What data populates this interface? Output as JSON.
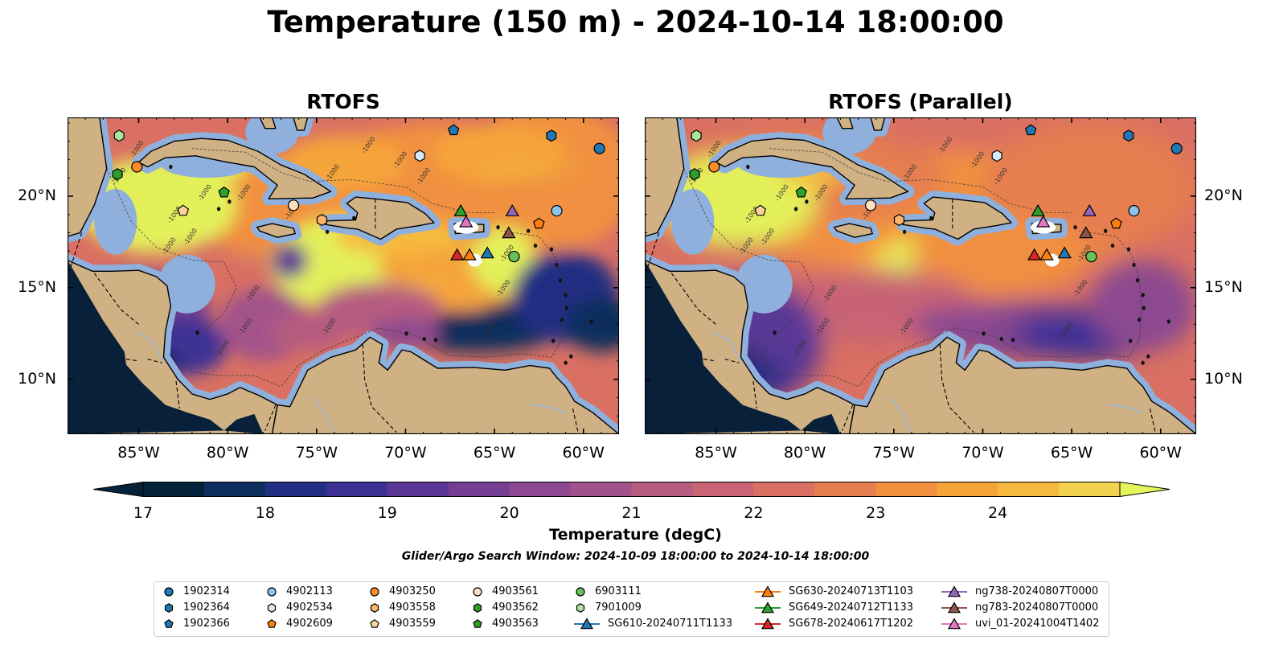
{
  "title": "Temperature (150 m) - 2024-10-14 18:00:00",
  "panels": [
    {
      "title": "RTOFS"
    },
    {
      "title": "RTOFS (Parallel)"
    }
  ],
  "map_axes": {
    "lon_labels": [
      "85°W",
      "80°W",
      "75°W",
      "70°W",
      "65°W",
      "60°W"
    ],
    "lon_values": [
      -85,
      -80,
      -75,
      -70,
      -65,
      -60
    ],
    "lat_labels": [
      "20°N",
      "15°N",
      "10°N"
    ],
    "lat_values": [
      20,
      15,
      10
    ],
    "lon_range": [
      -89,
      -58
    ],
    "lat_range": [
      7,
      24.3
    ]
  },
  "contour_label": "-1000",
  "colors": {
    "land": "#cfb184",
    "shelf": "#8fb0dc",
    "deep_cold": "#08203a",
    "warm": "#e3f05a"
  },
  "colorbar": {
    "label": "Temperature (degC)",
    "ticks": [
      "17",
      "18",
      "19",
      "20",
      "21",
      "22",
      "23",
      "24"
    ],
    "tick_values": [
      17,
      18,
      19,
      20,
      21,
      22,
      23,
      24
    ],
    "range": [
      16.7,
      24.5
    ],
    "colors": [
      "#04233b",
      "#0e2e5d",
      "#232f83",
      "#3d3095",
      "#5a3796",
      "#743f92",
      "#8c4890",
      "#a2528a",
      "#b65c80",
      "#c86474",
      "#d97063",
      "#e67e50",
      "#f1903f",
      "#f5a43a",
      "#f6b93f",
      "#f2d24f"
    ],
    "under_color": "#04233b",
    "over_color": "#e3f55a"
  },
  "search_window": "Glider/Argo Search Window: 2024-10-09 18:00:00 to 2024-10-14 18:00:00",
  "legend": {
    "items": [
      {
        "label": "1902314",
        "marker": "circle",
        "color": "#1f77b4"
      },
      {
        "label": "1902364",
        "marker": "hexagon",
        "color": "#1f77b4"
      },
      {
        "label": "1902366",
        "marker": "pentagon",
        "color": "#1f77b4"
      },
      {
        "label": "4902113",
        "marker": "circle",
        "color": "#8ac5ef"
      },
      {
        "label": "4902534",
        "marker": "hexagon",
        "color": "#d5e9fa"
      },
      {
        "label": "4902609",
        "marker": "pentagon",
        "color": "#ff7f0e"
      },
      {
        "label": "4903250",
        "marker": "circle",
        "color": "#ff8c2a"
      },
      {
        "label": "4903558",
        "marker": "hexagon",
        "color": "#ffb36b"
      },
      {
        "label": "4903559",
        "marker": "pentagon",
        "color": "#ffd3a0"
      },
      {
        "label": "4903561",
        "marker": "circle",
        "color": "#fde0c0"
      },
      {
        "label": "4903562",
        "marker": "hexagon",
        "color": "#2ca02c"
      },
      {
        "label": "4903563",
        "marker": "pentagon",
        "color": "#2ca02c"
      },
      {
        "label": "6903111",
        "marker": "circle",
        "color": "#66c35a"
      },
      {
        "label": "7901009",
        "marker": "hexagon",
        "color": "#a9e69b"
      },
      {
        "label": "SG610-20240711T1133",
        "marker": "triangle",
        "color": "#1f77b4"
      },
      {
        "label": "SG630-20240713T1103",
        "marker": "triangle",
        "color": "#ff7f0e"
      },
      {
        "label": "SG649-20240712T1133",
        "marker": "triangle",
        "color": "#2ca02c"
      },
      {
        "label": "SG678-20240617T1202",
        "marker": "triangle",
        "color": "#d62728"
      },
      {
        "label": "ng738-20240807T0000",
        "marker": "triangle",
        "color": "#9467bd"
      },
      {
        "label": "ng783-20240807T0000",
        "marker": "triangle",
        "color": "#8c564b"
      },
      {
        "label": "uvi_01-20241004T1402",
        "marker": "triangle",
        "color": "#e377c2"
      }
    ]
  },
  "observations": [
    {
      "id": "1902314",
      "lon": -59.1,
      "lat": 22.6
    },
    {
      "id": "1902364",
      "lon": -61.8,
      "lat": 23.3
    },
    {
      "id": "1902366",
      "lon": -67.3,
      "lat": 23.6
    },
    {
      "id": "4902113",
      "lon": -61.5,
      "lat": 19.2
    },
    {
      "id": "4902534",
      "lon": -69.2,
      "lat": 22.2
    },
    {
      "id": "4902609",
      "lon": -62.5,
      "lat": 18.5
    },
    {
      "id": "4903250",
      "lon": -85.1,
      "lat": 21.6
    },
    {
      "id": "4903558",
      "lon": -74.7,
      "lat": 18.7
    },
    {
      "id": "4903559",
      "lon": -82.5,
      "lat": 19.2
    },
    {
      "id": "4903561",
      "lon": -76.3,
      "lat": 19.5
    },
    {
      "id": "4903562",
      "lon": -86.2,
      "lat": 21.2
    },
    {
      "id": "4903563",
      "lon": -80.2,
      "lat": 20.2
    },
    {
      "id": "6903111",
      "lon": -63.9,
      "lat": 16.7
    },
    {
      "id": "7901009",
      "lon": -86.1,
      "lat": 23.3
    },
    {
      "id": "SG610-20240711T1133",
      "lon": -65.4,
      "lat": 16.9
    },
    {
      "id": "SG630-20240713T1103",
      "lon": -66.4,
      "lat": 16.8
    },
    {
      "id": "SG649-20240712T1133",
      "lon": -66.9,
      "lat": 19.2
    },
    {
      "id": "SG678-20240617T1202",
      "lon": -67.1,
      "lat": 16.8
    },
    {
      "id": "ng738-20240807T0000",
      "lon": -64.0,
      "lat": 19.2
    },
    {
      "id": "ng783-20240807T0000",
      "lon": -64.2,
      "lat": 18.0
    },
    {
      "id": "uvi_01-20241004T1402",
      "lon": -66.6,
      "lat": 18.6
    }
  ]
}
